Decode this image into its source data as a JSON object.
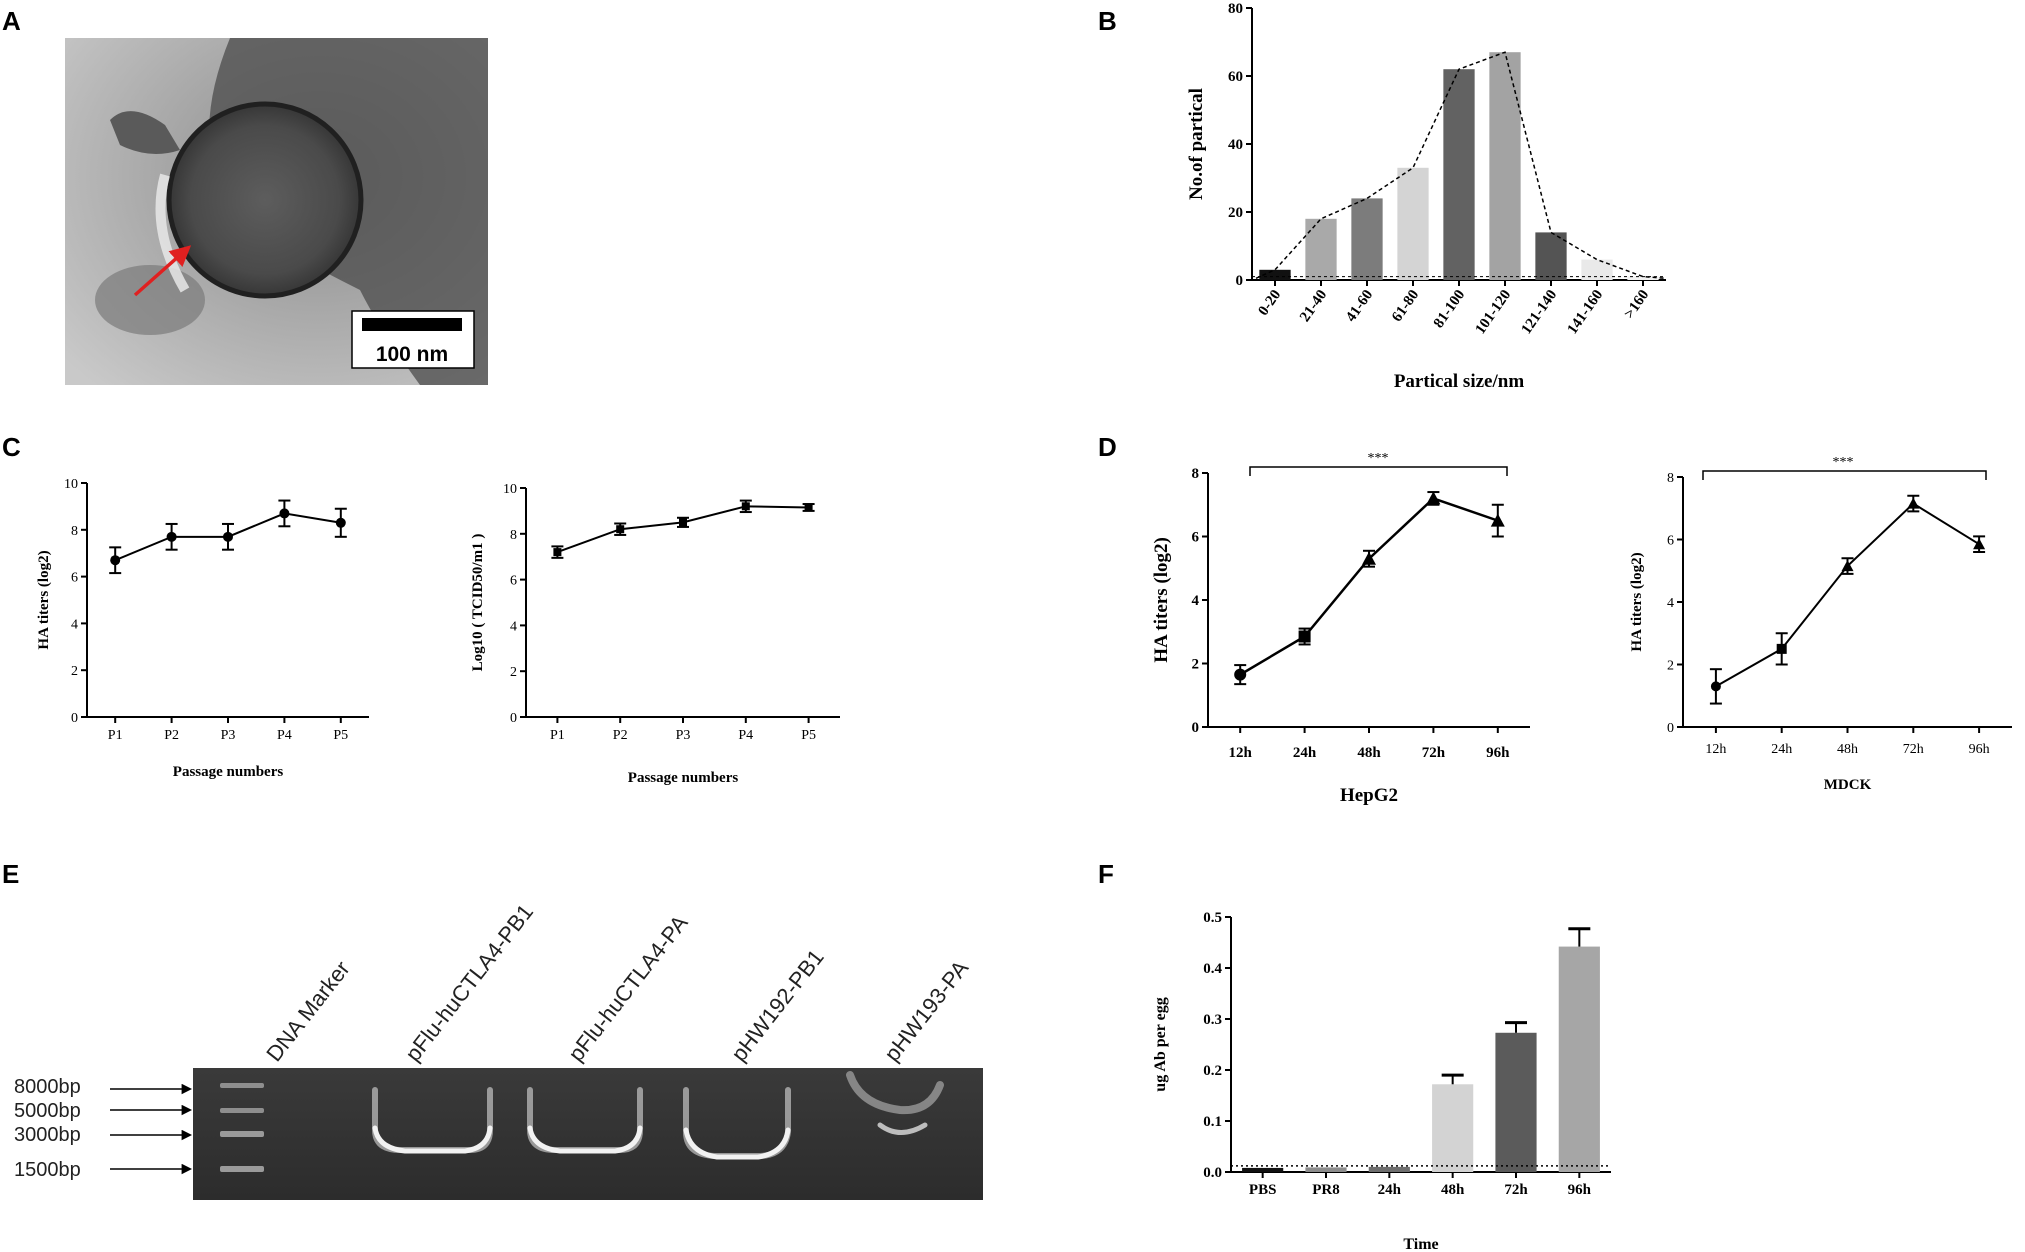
{
  "panels": {
    "A": {
      "letter": "A",
      "scale_bar_label": "100 nm"
    },
    "B": {
      "letter": "B"
    },
    "C": {
      "letter": "C"
    },
    "D": {
      "letter": "D",
      "stars_left": "***",
      "stars_right": "***"
    },
    "E": {
      "letter": "E",
      "lanes": [
        "DNA Marker",
        "pFlu-huCTLA4-PB1",
        "pFlu-huCTLA4-PA",
        "pHW192-PB1",
        "pHW193-PA"
      ],
      "markers": [
        "8000bp",
        "5000bp",
        "3000bp",
        "1500bp"
      ]
    },
    "F": {
      "letter": "F"
    }
  },
  "chart_data": [
    {
      "id": "B",
      "type": "bar",
      "title": "",
      "xlabel": "Partical size/nm",
      "ylabel": "No.of partical",
      "ylim": [
        0,
        80
      ],
      "yticks": [
        0,
        20,
        40,
        60,
        80
      ],
      "categories": [
        "0-20",
        "21-40",
        "41-60",
        "61-80",
        "81-100",
        "101-120",
        "121-140",
        "141-160",
        ">160"
      ],
      "values": [
        3,
        18,
        24,
        33,
        62,
        67,
        14,
        6,
        1
      ],
      "bar_colors": [
        "#111111",
        "#a9a9a9",
        "#7c7c7c",
        "#d4d4d4",
        "#626262",
        "#a3a3a3",
        "#545454",
        "#e9e9e9",
        "#f2f2f2"
      ],
      "trend_line": "dashed"
    },
    {
      "id": "C1",
      "type": "line",
      "xlabel": "Passage numbers",
      "ylabel": "HA titers (log2)",
      "ylim": [
        0,
        10
      ],
      "yticks": [
        0,
        2,
        4,
        6,
        8,
        10
      ],
      "categories": [
        "P1",
        "P2",
        "P3",
        "P4",
        "P5"
      ],
      "values": [
        6.7,
        7.7,
        7.7,
        8.7,
        8.3
      ],
      "errors": [
        0.55,
        0.55,
        0.55,
        0.55,
        0.6
      ],
      "marker": "circle"
    },
    {
      "id": "C2",
      "type": "line",
      "xlabel": "Passage numbers",
      "ylabel": "Log10 ( TCID50/m1 )",
      "ylim": [
        0,
        10
      ],
      "yticks": [
        0,
        2,
        4,
        6,
        8,
        10
      ],
      "categories": [
        "P1",
        "P2",
        "P3",
        "P4",
        "P5"
      ],
      "values": [
        7.2,
        8.2,
        8.5,
        9.2,
        9.15
      ],
      "errors": [
        0.25,
        0.25,
        0.2,
        0.25,
        0.15
      ],
      "marker": "square"
    },
    {
      "id": "D1",
      "type": "line",
      "xlabel": "HepG2",
      "ylabel": "HA titers (log2)",
      "ylim": [
        0,
        8
      ],
      "yticks": [
        0,
        2,
        4,
        6,
        8
      ],
      "categories": [
        "12h",
        "24h",
        "48h",
        "72h",
        "96h"
      ],
      "values": [
        1.65,
        2.85,
        5.3,
        7.2,
        6.5
      ],
      "errors": [
        0.3,
        0.25,
        0.25,
        0.2,
        0.5
      ],
      "marker": "mixed"
    },
    {
      "id": "D2",
      "type": "line",
      "xlabel": "MDCK",
      "ylabel": "HA titers (log2)",
      "ylim": [
        0,
        8
      ],
      "yticks": [
        0,
        2,
        4,
        6,
        8
      ],
      "categories": [
        "12h",
        "24h",
        "48h",
        "72h",
        "96h"
      ],
      "values": [
        1.3,
        2.5,
        5.15,
        7.15,
        5.85
      ],
      "errors": [
        0.55,
        0.5,
        0.25,
        0.25,
        0.25
      ],
      "marker": "mixed"
    },
    {
      "id": "F",
      "type": "bar",
      "xlabel": "Time",
      "ylabel": "ug Ab per egg",
      "ylim": [
        0,
        0.5
      ],
      "yticks": [
        "0.0",
        "0.1",
        "0.2",
        "0.3",
        "0.4",
        "0.5"
      ],
      "categories": [
        "PBS",
        "PR8",
        "24h",
        "48h",
        "72h",
        "96h"
      ],
      "values": [
        0.008,
        0.009,
        0.01,
        0.172,
        0.273,
        0.442
      ],
      "errors": [
        0,
        0,
        0,
        0.018,
        0.02,
        0.035
      ],
      "bar_colors": [
        "#111111",
        "#8c8c8c",
        "#6e6e6e",
        "#d3d3d3",
        "#5b5b5b",
        "#a6a6a6"
      ],
      "baseline_dotted": 0.012
    }
  ]
}
